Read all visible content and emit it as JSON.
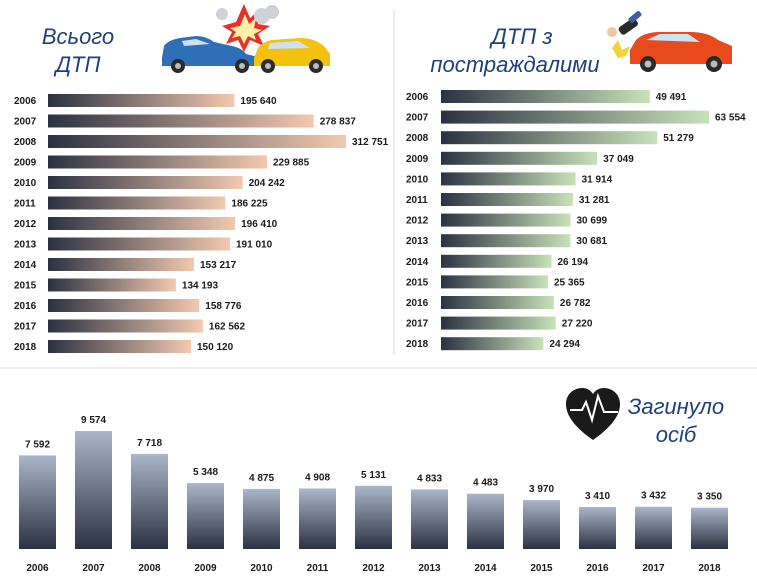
{
  "chart_data": [
    {
      "type": "bar",
      "orientation": "horizontal",
      "title_lines": [
        "Всього",
        "ДТП"
      ],
      "categories": [
        "2006",
        "2007",
        "2008",
        "2009",
        "2010",
        "2011",
        "2012",
        "2013",
        "2014",
        "2015",
        "2016",
        "2017",
        "2018"
      ],
      "values": [
        195640,
        278837,
        312751,
        229885,
        204242,
        186225,
        196410,
        191010,
        153217,
        134193,
        158776,
        162562,
        150120
      ],
      "labels": [
        "195 640",
        "278 837",
        "312 751",
        "229 885",
        "204 242",
        "186 225",
        "196 410",
        "191 010",
        "153 217",
        "134 193",
        "158 776",
        "162 562",
        "150 120"
      ],
      "colors": {
        "start": "#2b3142",
        "end": "#f3c9ae"
      }
    },
    {
      "type": "bar",
      "orientation": "horizontal",
      "title_lines": [
        "ДТП з",
        "постраждалими"
      ],
      "categories": [
        "2006",
        "2007",
        "2008",
        "2009",
        "2010",
        "2011",
        "2012",
        "2013",
        "2014",
        "2015",
        "2016",
        "2017",
        "2018"
      ],
      "values": [
        49491,
        63554,
        51279,
        37049,
        31914,
        31281,
        30699,
        30681,
        26194,
        25365,
        26782,
        27220,
        24294
      ],
      "labels": [
        "49 491",
        "63 554",
        "51 279",
        "37 049",
        "31 914",
        "31 281",
        "30 699",
        "30 681",
        "26 194",
        "25 365",
        "26 782",
        "27 220",
        "24 294"
      ],
      "colors": {
        "start": "#2b3142",
        "end": "#c8e2b8"
      }
    },
    {
      "type": "bar",
      "orientation": "vertical",
      "title_lines": [
        "Загинуло",
        "осіб"
      ],
      "categories": [
        "2006",
        "2007",
        "2008",
        "2009",
        "2010",
        "2011",
        "2012",
        "2013",
        "2014",
        "2015",
        "2016",
        "2017",
        "2018"
      ],
      "values": [
        7592,
        9574,
        7718,
        5348,
        4875,
        4908,
        5131,
        4833,
        4483,
        3970,
        3410,
        3432,
        3350
      ],
      "labels": [
        "7 592",
        "9 574",
        "7 718",
        "5 348",
        "4 875",
        "4 908",
        "5 131",
        "4 833",
        "4 483",
        "3 970",
        "3 410",
        "3 432",
        "3 350"
      ],
      "colors": {
        "start": "#aab6cc",
        "end": "#2b3142"
      }
    }
  ],
  "icons": {
    "crash": "car-crash-icon",
    "injury": "car-pedestrian-icon",
    "death": "heart-pulse-icon"
  }
}
